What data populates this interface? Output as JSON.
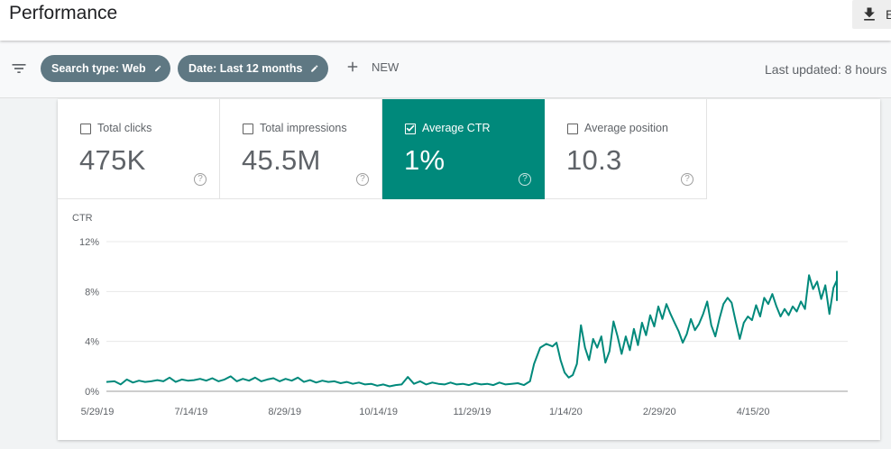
{
  "header": {
    "title": "Performance",
    "export_label": "E"
  },
  "filters": {
    "search_type_chip": "Search type: Web",
    "date_chip": "Date: Last 12 months",
    "new_label": "NEW",
    "last_updated": "Last updated: 8 hours"
  },
  "metrics": [
    {
      "label": "Total clicks",
      "value": "475K",
      "selected": false
    },
    {
      "label": "Total impressions",
      "value": "45.5M",
      "selected": false
    },
    {
      "label": "Average CTR",
      "value": "1%",
      "selected": true
    },
    {
      "label": "Average position",
      "value": "10.3",
      "selected": false
    }
  ],
  "colors": {
    "accent": "#00897b",
    "chip": "#5f7883",
    "line": "#00897b"
  },
  "chart_data": {
    "type": "line",
    "ylabel": "CTR",
    "y_ticks": [
      "12%",
      "8%",
      "4%",
      "0%"
    ],
    "ylim": [
      0,
      12
    ],
    "x_ticks": [
      "5/29/19",
      "7/14/19",
      "8/29/19",
      "10/14/19",
      "11/29/19",
      "1/14/20",
      "2/29/20",
      "4/15/20"
    ],
    "xlim": [
      "2019-05-29",
      "2020-05-27"
    ],
    "grid": true,
    "series": [
      {
        "points": [
          [
            "2019-05-29",
            0.75
          ],
          [
            "2019-06-02",
            0.8
          ],
          [
            "2019-06-05",
            0.55
          ],
          [
            "2019-06-08",
            0.95
          ],
          [
            "2019-06-11",
            0.7
          ],
          [
            "2019-06-14",
            0.85
          ],
          [
            "2019-06-17",
            0.75
          ],
          [
            "2019-06-20",
            0.8
          ],
          [
            "2019-06-23",
            0.9
          ],
          [
            "2019-06-26",
            0.8
          ],
          [
            "2019-06-29",
            1.1
          ],
          [
            "2019-07-02",
            0.75
          ],
          [
            "2019-07-05",
            0.95
          ],
          [
            "2019-07-08",
            0.85
          ],
          [
            "2019-07-11",
            0.9
          ],
          [
            "2019-07-14",
            1.0
          ],
          [
            "2019-07-17",
            0.85
          ],
          [
            "2019-07-20",
            1.05
          ],
          [
            "2019-07-23",
            0.8
          ],
          [
            "2019-07-26",
            0.95
          ],
          [
            "2019-07-29",
            1.2
          ],
          [
            "2019-08-01",
            0.8
          ],
          [
            "2019-08-04",
            1.0
          ],
          [
            "2019-08-07",
            0.85
          ],
          [
            "2019-08-10",
            1.1
          ],
          [
            "2019-08-13",
            0.8
          ],
          [
            "2019-08-16",
            0.95
          ],
          [
            "2019-08-19",
            1.05
          ],
          [
            "2019-08-22",
            0.8
          ],
          [
            "2019-08-25",
            1.0
          ],
          [
            "2019-08-28",
            0.85
          ],
          [
            "2019-08-31",
            1.1
          ],
          [
            "2019-09-03",
            0.75
          ],
          [
            "2019-09-06",
            0.9
          ],
          [
            "2019-09-09",
            0.7
          ],
          [
            "2019-09-12",
            0.85
          ],
          [
            "2019-09-15",
            0.75
          ],
          [
            "2019-09-18",
            0.8
          ],
          [
            "2019-09-21",
            0.65
          ],
          [
            "2019-09-24",
            0.75
          ],
          [
            "2019-09-27",
            0.6
          ],
          [
            "2019-09-30",
            0.7
          ],
          [
            "2019-10-03",
            0.55
          ],
          [
            "2019-10-06",
            0.6
          ],
          [
            "2019-10-09",
            0.45
          ],
          [
            "2019-10-12",
            0.55
          ],
          [
            "2019-10-15",
            0.4
          ],
          [
            "2019-10-18",
            0.5
          ],
          [
            "2019-10-21",
            0.55
          ],
          [
            "2019-10-24",
            1.15
          ],
          [
            "2019-10-27",
            0.6
          ],
          [
            "2019-10-30",
            0.8
          ],
          [
            "2019-11-02",
            0.55
          ],
          [
            "2019-11-05",
            0.7
          ],
          [
            "2019-11-08",
            0.6
          ],
          [
            "2019-11-11",
            0.55
          ],
          [
            "2019-11-14",
            0.7
          ],
          [
            "2019-11-17",
            0.55
          ],
          [
            "2019-11-20",
            0.6
          ],
          [
            "2019-11-23",
            0.5
          ],
          [
            "2019-11-26",
            0.65
          ],
          [
            "2019-11-29",
            0.55
          ],
          [
            "2019-12-02",
            0.6
          ],
          [
            "2019-12-05",
            0.5
          ],
          [
            "2019-12-08",
            0.7
          ],
          [
            "2019-12-11",
            0.55
          ],
          [
            "2019-12-14",
            0.6
          ],
          [
            "2019-12-17",
            0.65
          ],
          [
            "2019-12-20",
            0.5
          ],
          [
            "2019-12-23",
            0.8
          ],
          [
            "2019-12-25",
            2.2
          ],
          [
            "2019-12-28",
            3.5
          ],
          [
            "2019-12-31",
            3.8
          ],
          [
            "2020-01-03",
            3.6
          ],
          [
            "2020-01-05",
            3.9
          ],
          [
            "2020-01-07",
            2.5
          ],
          [
            "2020-01-09",
            1.5
          ],
          [
            "2020-01-11",
            1.1
          ],
          [
            "2020-01-13",
            1.3
          ],
          [
            "2020-01-15",
            2.2
          ],
          [
            "2020-01-17",
            5.3
          ],
          [
            "2020-01-19",
            3.5
          ],
          [
            "2020-01-21",
            2.5
          ],
          [
            "2020-01-23",
            4.2
          ],
          [
            "2020-01-25",
            3.5
          ],
          [
            "2020-01-27",
            4.4
          ],
          [
            "2020-01-29",
            2.3
          ],
          [
            "2020-01-31",
            3.2
          ],
          [
            "2020-02-02",
            5.6
          ],
          [
            "2020-02-04",
            4.4
          ],
          [
            "2020-02-06",
            3.0
          ],
          [
            "2020-02-08",
            4.4
          ],
          [
            "2020-02-10",
            3.3
          ],
          [
            "2020-02-12",
            5.0
          ],
          [
            "2020-02-14",
            3.7
          ],
          [
            "2020-02-16",
            5.5
          ],
          [
            "2020-02-18",
            4.5
          ],
          [
            "2020-02-20",
            6.1
          ],
          [
            "2020-02-22",
            5.2
          ],
          [
            "2020-02-24",
            6.8
          ],
          [
            "2020-02-26",
            5.8
          ],
          [
            "2020-02-28",
            7.0
          ],
          [
            "2020-03-01",
            6.2
          ],
          [
            "2020-03-03",
            5.5
          ],
          [
            "2020-03-05",
            4.8
          ],
          [
            "2020-03-07",
            3.9
          ],
          [
            "2020-03-09",
            4.6
          ],
          [
            "2020-03-11",
            5.8
          ],
          [
            "2020-03-13",
            4.9
          ],
          [
            "2020-03-15",
            5.4
          ],
          [
            "2020-03-17",
            6.2
          ],
          [
            "2020-03-19",
            7.2
          ],
          [
            "2020-03-21",
            5.3
          ],
          [
            "2020-03-23",
            4.4
          ],
          [
            "2020-03-25",
            5.8
          ],
          [
            "2020-03-27",
            7.0
          ],
          [
            "2020-03-29",
            7.5
          ],
          [
            "2020-03-31",
            7.1
          ],
          [
            "2020-04-02",
            5.6
          ],
          [
            "2020-04-04",
            4.2
          ],
          [
            "2020-04-06",
            5.5
          ],
          [
            "2020-04-08",
            6.0
          ],
          [
            "2020-04-10",
            5.7
          ],
          [
            "2020-04-12",
            6.9
          ],
          [
            "2020-04-14",
            6.0
          ],
          [
            "2020-04-16",
            7.5
          ],
          [
            "2020-04-18",
            7.0
          ],
          [
            "2020-04-20",
            7.8
          ],
          [
            "2020-04-22",
            6.8
          ],
          [
            "2020-04-24",
            6.0
          ],
          [
            "2020-04-26",
            6.6
          ],
          [
            "2020-04-28",
            6.1
          ],
          [
            "2020-04-30",
            6.8
          ],
          [
            "2020-05-02",
            6.4
          ],
          [
            "2020-05-04",
            7.2
          ],
          [
            "2020-05-06",
            6.6
          ],
          [
            "2020-05-08",
            9.3
          ],
          [
            "2020-05-10",
            8.2
          ],
          [
            "2020-05-12",
            8.8
          ],
          [
            "2020-05-14",
            7.4
          ],
          [
            "2020-05-16",
            8.5
          ],
          [
            "2020-05-18",
            6.2
          ],
          [
            "2020-05-20",
            8.3
          ],
          [
            "2020-05-22",
            8.9
          ],
          [
            "2020-05-24",
            8.1
          ],
          [
            "2020-05-26",
            9.4
          ],
          [
            "2020-05-28",
            8.6
          ],
          [
            "2020-05-30",
            8.2
          ],
          [
            "2020-06-01",
            9.6
          ],
          [
            "2020-06-03",
            7.3
          ],
          [
            "2020-06-05",
            7.6
          ],
          [
            "2020-06-07",
            9.2
          ],
          [
            "2020-06-09",
            8.9
          ]
        ]
      }
    ]
  }
}
